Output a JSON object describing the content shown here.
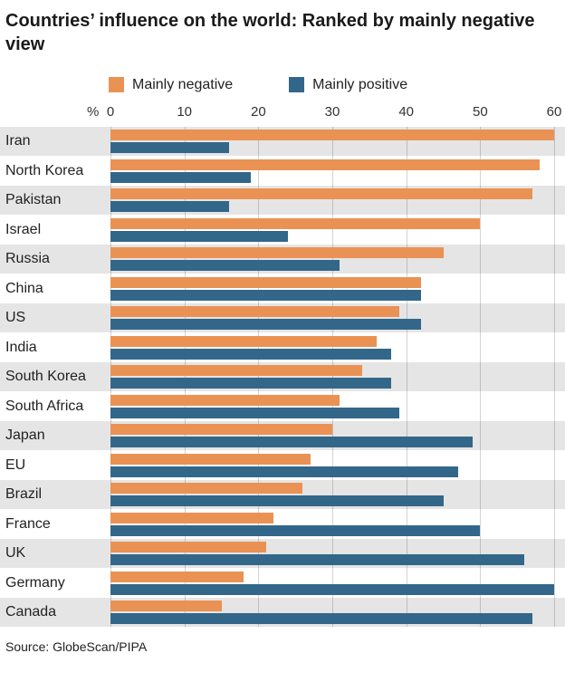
{
  "header": {
    "title": "Countries’ influence on the world: Ranked by mainly negative view"
  },
  "axis": {
    "unit": "%",
    "ticks": [
      "0",
      "10",
      "20",
      "30",
      "40",
      "50",
      "60"
    ]
  },
  "source": "Source: GlobeScan/PIPA",
  "colors": {
    "negative": "#EA9254",
    "positive": "#336789",
    "row_band": "#e5e5e5"
  },
  "chart_data": {
    "type": "bar",
    "orientation": "horizontal",
    "title": "Countries’ influence on the world: Ranked by mainly negative view",
    "unit": "%",
    "xlim": [
      0,
      60
    ],
    "x_ticks": [
      0,
      10,
      20,
      30,
      40,
      50,
      60
    ],
    "grid": true,
    "legend_position": "top",
    "categories": [
      "Iran",
      "North Korea",
      "Pakistan",
      "Israel",
      "Russia",
      "China",
      "US",
      "India",
      "South Korea",
      "South Africa",
      "Japan",
      "EU",
      "Brazil",
      "France",
      "UK",
      "Germany",
      "Canada"
    ],
    "series": [
      {
        "name": "Mainly negative",
        "color": "#EA9254",
        "values": [
          60,
          58,
          57,
          50,
          45,
          42,
          39,
          36,
          34,
          31,
          30,
          27,
          26,
          22,
          21,
          18,
          15
        ]
      },
      {
        "name": "Mainly positive",
        "color": "#336789",
        "values": [
          16,
          19,
          16,
          24,
          31,
          42,
          42,
          38,
          38,
          39,
          49,
          47,
          45,
          50,
          56,
          60,
          57
        ]
      }
    ],
    "source": "Source: GlobeScan/PIPA"
  }
}
